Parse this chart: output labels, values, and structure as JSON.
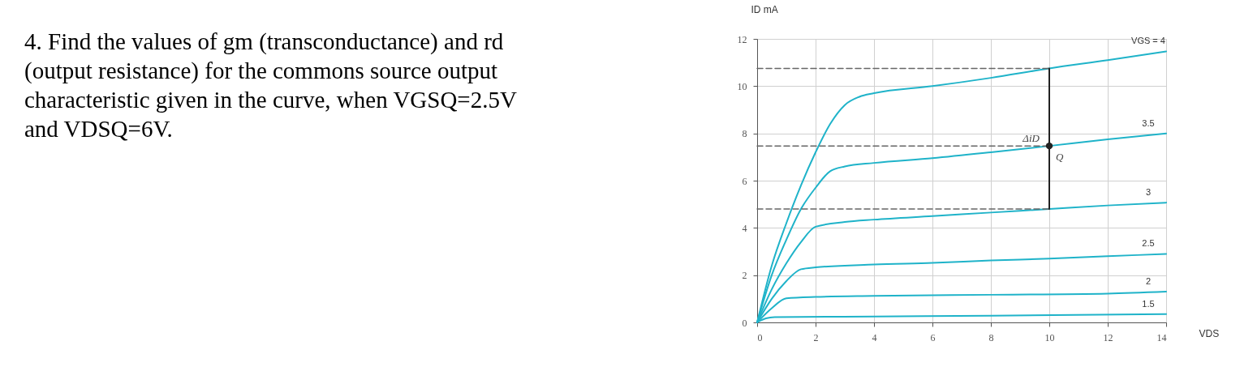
{
  "chart_data": {
    "type": "line",
    "title": "4. Find the values of gm (transconductance) and rd (output resistance) for the commons source output characteristic given in the curve, when VGSQ=2.5V and VDSQ=6V.",
    "xlabel": "VDS",
    "ylabel": "ID mA",
    "xlim": [
      0,
      14
    ],
    "ylim": [
      0,
      12
    ],
    "xticks": [
      0,
      2,
      4,
      6,
      8,
      10,
      12,
      14
    ],
    "yticks": [
      0,
      2,
      4,
      6,
      8,
      10,
      12
    ],
    "grid": true,
    "legend": false,
    "marker": "none",
    "series": [
      {
        "name": "VGS = 4",
        "color": "#1fb3c9",
        "x": [
          0,
          0.5,
          1,
          1.5,
          2,
          2.5,
          3,
          3.5,
          4,
          6,
          8,
          10,
          12,
          14
        ],
        "values": [
          0,
          2.4,
          4.2,
          5.8,
          7.2,
          8.4,
          9.2,
          9.55,
          9.7,
          10.0,
          10.35,
          10.75,
          11.1,
          11.47
        ]
      },
      {
        "name": "3.5",
        "color": "#1fb3c9",
        "x": [
          0,
          0.5,
          1,
          1.5,
          2,
          2.5,
          3,
          4,
          6,
          8,
          10,
          12,
          14
        ],
        "values": [
          0,
          2.0,
          3.5,
          4.8,
          5.7,
          6.4,
          6.6,
          6.75,
          6.95,
          7.2,
          7.47,
          7.75,
          8.0
        ]
      },
      {
        "name": "3",
        "color": "#1fb3c9",
        "x": [
          0,
          0.5,
          1,
          1.5,
          2,
          3,
          4,
          6,
          8,
          10,
          12,
          14
        ],
        "values": [
          0,
          1.4,
          2.5,
          3.4,
          4.05,
          4.25,
          4.35,
          4.5,
          4.65,
          4.8,
          4.95,
          5.07
        ]
      },
      {
        "name": "2.5",
        "color": "#1fb3c9",
        "x": [
          0,
          0.5,
          1,
          1.5,
          2,
          4,
          6,
          8,
          10,
          12,
          14
        ],
        "values": [
          0,
          1.0,
          1.75,
          2.25,
          2.33,
          2.45,
          2.52,
          2.62,
          2.7,
          2.8,
          2.9
        ]
      },
      {
        "name": "2",
        "color": "#1fb3c9",
        "x": [
          0,
          0.5,
          1,
          2,
          4,
          8,
          12,
          14
        ],
        "values": [
          0,
          0.6,
          1.02,
          1.08,
          1.12,
          1.17,
          1.22,
          1.3
        ]
      },
      {
        "name": "1.5",
        "color": "#1fb3c9",
        "x": [
          0,
          0.3,
          0.6,
          4,
          8,
          14
        ],
        "values": [
          0,
          0.17,
          0.22,
          0.25,
          0.28,
          0.35
        ]
      },
      {
        "color": "#666666",
        "line_style": "dashed",
        "x": [
          0,
          10
        ],
        "values": [
          10.75,
          10.75
        ]
      },
      {
        "color": "#666666",
        "line_style": "dashed",
        "x": [
          0,
          10
        ],
        "values": [
          7.47,
          7.47
        ]
      },
      {
        "color": "#666666",
        "line_style": "dashed",
        "x": [
          0,
          10
        ],
        "values": [
          4.8,
          4.8
        ]
      },
      {
        "color": "#222222",
        "x": [
          10,
          10
        ],
        "values": [
          4.8,
          10.75
        ]
      },
      {
        "type": "scatter",
        "marker": "circle",
        "color": "#222222",
        "x": [
          10
        ],
        "values": [
          7.47
        ]
      }
    ],
    "annotations": [
      {
        "text": "ΔiD",
        "x": 10,
        "y": 7.775
      },
      {
        "text": "Q",
        "x": 10,
        "y": 7.47
      }
    ]
  }
}
